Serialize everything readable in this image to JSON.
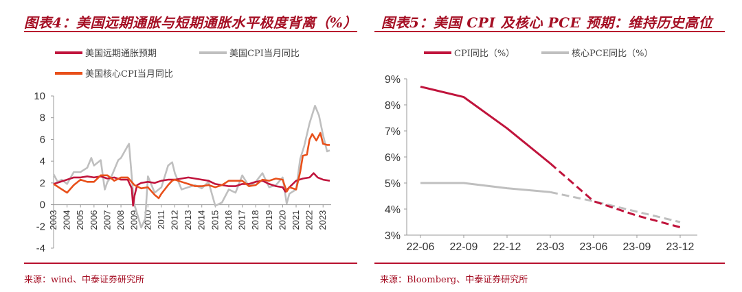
{
  "left": {
    "title": "图表4：美国远期通胀与短期通胀水平极度背离（%）",
    "source": "来源：wind、中泰证券研究所",
    "colors": {
      "long_term": "#c0143c",
      "cpi": "#bfbfbf",
      "core_cpi": "#e8501a"
    },
    "chart_data": {
      "type": "line",
      "title": "美国远期通胀与短期通胀水平极度背离（%）",
      "xlabel": "",
      "ylabel": "",
      "ylim": [
        -4,
        10
      ],
      "yticks": [
        "10",
        "8",
        "6",
        "4",
        "2",
        "0",
        "-2",
        "-4"
      ],
      "xlim": [
        2003,
        2023.6
      ],
      "xticks": [
        "2003",
        "2004",
        "2005",
        "2006",
        "2007",
        "2008",
        "2009",
        "2010",
        "2011",
        "2012",
        "2013",
        "2014",
        "2015",
        "2016",
        "2017",
        "2018",
        "2019",
        "2020",
        "2021",
        "2022",
        "2023"
      ],
      "series": [
        {
          "name": "美国远期通胀预期",
          "color": "#c0143c",
          "points": [
            [
              2003,
              1.9
            ],
            [
              2003.5,
              2.1
            ],
            [
              2004,
              2.3
            ],
            [
              2004.5,
              2.5
            ],
            [
              2005,
              2.5
            ],
            [
              2005.5,
              2.6
            ],
            [
              2006,
              2.5
            ],
            [
              2006.5,
              2.6
            ],
            [
              2007,
              2.4
            ],
            [
              2007.5,
              2.5
            ],
            [
              2008,
              2.3
            ],
            [
              2008.5,
              2.3
            ],
            [
              2008.8,
              1.5
            ],
            [
              2008.9,
              -0.1
            ],
            [
              2009,
              0.8
            ],
            [
              2009.2,
              1.8
            ],
            [
              2009.5,
              2.0
            ],
            [
              2010,
              2.1
            ],
            [
              2010.5,
              2.0
            ],
            [
              2011,
              2.2
            ],
            [
              2011.5,
              2.3
            ],
            [
              2012,
              2.3
            ],
            [
              2012.5,
              2.4
            ],
            [
              2013,
              2.5
            ],
            [
              2013.5,
              2.4
            ],
            [
              2014,
              2.3
            ],
            [
              2014.5,
              2.2
            ],
            [
              2015,
              1.9
            ],
            [
              2015.5,
              1.8
            ],
            [
              2016,
              1.7
            ],
            [
              2016.5,
              1.7
            ],
            [
              2017,
              1.9
            ],
            [
              2017.5,
              1.9
            ],
            [
              2018,
              2.1
            ],
            [
              2018.5,
              2.2
            ],
            [
              2019,
              1.9
            ],
            [
              2019.5,
              1.7
            ],
            [
              2020,
              1.6
            ],
            [
              2020.2,
              1.2
            ],
            [
              2020.5,
              1.6
            ],
            [
              2021,
              2.2
            ],
            [
              2021.5,
              2.4
            ],
            [
              2022,
              2.5
            ],
            [
              2022.3,
              2.9
            ],
            [
              2022.6,
              2.5
            ],
            [
              2023,
              2.3
            ],
            [
              2023.5,
              2.2
            ]
          ]
        },
        {
          "name": "美国CPI当月同比",
          "color": "#bfbfbf",
          "points": [
            [
              2003,
              2.8
            ],
            [
              2003.3,
              2.1
            ],
            [
              2003.6,
              2.3
            ],
            [
              2004,
              1.9
            ],
            [
              2004.5,
              3.0
            ],
            [
              2005,
              3.0
            ],
            [
              2005.5,
              3.4
            ],
            [
              2005.8,
              4.3
            ],
            [
              2006,
              3.6
            ],
            [
              2006.5,
              4.1
            ],
            [
              2006.8,
              1.4
            ],
            [
              2007,
              2.1
            ],
            [
              2007.3,
              2.6
            ],
            [
              2007.8,
              4.1
            ],
            [
              2008,
              4.3
            ],
            [
              2008.5,
              5.4
            ],
            [
              2008.6,
              5.6
            ],
            [
              2008.9,
              1.1
            ],
            [
              2009,
              0.0
            ],
            [
              2009.5,
              -2.1
            ],
            [
              2009.8,
              -1.3
            ],
            [
              2010,
              2.6
            ],
            [
              2010.5,
              1.1
            ],
            [
              2011,
              1.6
            ],
            [
              2011.5,
              3.6
            ],
            [
              2011.8,
              3.9
            ],
            [
              2012,
              2.9
            ],
            [
              2012.5,
              1.4
            ],
            [
              2013,
              1.6
            ],
            [
              2013.5,
              1.8
            ],
            [
              2014,
              1.5
            ],
            [
              2014.5,
              2.1
            ],
            [
              2015,
              -0.1
            ],
            [
              2015.5,
              0.2
            ],
            [
              2016,
              1.4
            ],
            [
              2016.5,
              1.1
            ],
            [
              2017,
              2.7
            ],
            [
              2017.5,
              1.7
            ],
            [
              2018,
              2.1
            ],
            [
              2018.5,
              2.9
            ],
            [
              2019,
              1.6
            ],
            [
              2019.5,
              1.8
            ],
            [
              2020,
              2.5
            ],
            [
              2020.3,
              0.1
            ],
            [
              2020.5,
              1.0
            ],
            [
              2021,
              1.4
            ],
            [
              2021.3,
              4.2
            ],
            [
              2021.6,
              5.4
            ],
            [
              2022,
              7.5
            ],
            [
              2022.4,
              9.1
            ],
            [
              2022.7,
              8.2
            ],
            [
              2023,
              6.4
            ],
            [
              2023.3,
              4.9
            ],
            [
              2023.5,
              5.0
            ]
          ]
        },
        {
          "name": "美国核心CPI当月同比",
          "color": "#e8501a",
          "points": [
            [
              2003,
              1.9
            ],
            [
              2003.5,
              1.5
            ],
            [
              2004,
              1.1
            ],
            [
              2004.5,
              1.8
            ],
            [
              2005,
              2.3
            ],
            [
              2005.5,
              2.1
            ],
            [
              2006,
              2.1
            ],
            [
              2006.5,
              2.7
            ],
            [
              2007,
              2.7
            ],
            [
              2007.5,
              2.2
            ],
            [
              2008,
              2.5
            ],
            [
              2008.5,
              2.5
            ],
            [
              2009,
              1.8
            ],
            [
              2009.5,
              1.5
            ],
            [
              2010,
              1.6
            ],
            [
              2010.5,
              0.9
            ],
            [
              2010.8,
              0.6
            ],
            [
              2011,
              1.0
            ],
            [
              2011.5,
              1.8
            ],
            [
              2011.8,
              2.2
            ],
            [
              2012,
              2.3
            ],
            [
              2012.5,
              2.1
            ],
            [
              2013,
              1.9
            ],
            [
              2013.5,
              1.7
            ],
            [
              2014,
              1.7
            ],
            [
              2014.5,
              1.8
            ],
            [
              2015,
              1.6
            ],
            [
              2015.5,
              1.8
            ],
            [
              2016,
              2.2
            ],
            [
              2016.5,
              2.2
            ],
            [
              2017,
              2.2
            ],
            [
              2017.5,
              1.7
            ],
            [
              2018,
              1.8
            ],
            [
              2018.5,
              2.3
            ],
            [
              2019,
              2.2
            ],
            [
              2019.5,
              2.4
            ],
            [
              2020,
              2.3
            ],
            [
              2020.3,
              1.2
            ],
            [
              2020.5,
              1.6
            ],
            [
              2021,
              1.4
            ],
            [
              2021.3,
              3.0
            ],
            [
              2021.5,
              4.5
            ],
            [
              2021.8,
              4.6
            ],
            [
              2022,
              6.0
            ],
            [
              2022.2,
              6.5
            ],
            [
              2022.5,
              5.9
            ],
            [
              2022.8,
              6.6
            ],
            [
              2023,
              5.6
            ],
            [
              2023.3,
              5.5
            ],
            [
              2023.5,
              5.5
            ]
          ]
        }
      ]
    },
    "legend": [
      {
        "label": "美国远期通胀预期",
        "color": "#c0143c"
      },
      {
        "label": "美国CPI当月同比",
        "color": "#bfbfbf"
      },
      {
        "label": "美国核心CPI当月同比",
        "color": "#e8501a"
      }
    ]
  },
  "right": {
    "title": "图表5：美国 CPI 及核心 PCE 预期：维持历史高位",
    "source": "来源：Bloomberg、中泰证券研究所",
    "chart_data": {
      "type": "line",
      "title": "美国 CPI 及核心 PCE 预期：维持历史高位",
      "xlabel": "",
      "ylabel": "",
      "ylim": [
        3,
        9
      ],
      "yticks": [
        "9%",
        "8%",
        "7%",
        "6%",
        "5%",
        "4%",
        "3%"
      ],
      "categories": [
        "22-06",
        "22-09",
        "22-12",
        "23-03",
        "23-06",
        "23-09",
        "23-12"
      ],
      "series": [
        {
          "name": "CPI同比（%）",
          "color": "#c0143c",
          "actual": [
            [
              0,
              8.7
            ],
            [
              1,
              8.3
            ],
            [
              2,
              7.1
            ],
            [
              3,
              5.75
            ]
          ],
          "forecast": [
            [
              3,
              5.75
            ],
            [
              4,
              4.3
            ],
            [
              5,
              3.75
            ],
            [
              6,
              3.3
            ]
          ]
        },
        {
          "name": "核心PCE同比（%）",
          "color": "#bfbfbf",
          "actual": [
            [
              0,
              5.0
            ],
            [
              1,
              5.0
            ],
            [
              2,
              4.8
            ],
            [
              3,
              4.65
            ]
          ],
          "forecast": [
            [
              3,
              4.65
            ],
            [
              4,
              4.3
            ],
            [
              5,
              3.9
            ],
            [
              6,
              3.5
            ]
          ]
        }
      ]
    },
    "legend": [
      {
        "label": "CPI同比（%）",
        "color": "#c0143c"
      },
      {
        "label": "核心PCE同比（%）",
        "color": "#bfbfbf"
      }
    ]
  }
}
